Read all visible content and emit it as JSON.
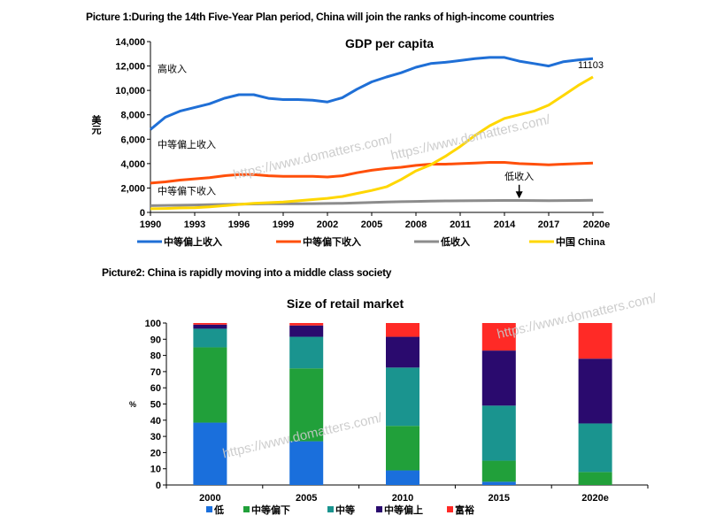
{
  "captions": {
    "picture1": "Picture 1:During the 14th Five-Year Plan period, China will join the ranks of high-income countries",
    "picture2": "Picture2: China is rapidly moving into a middle class society"
  },
  "watermarks": [
    "https://www.domatters.com/",
    "https://www.domatters.com/",
    "https://www.domatters.com/",
    "https://www.domatters.com/"
  ],
  "chart_data": [
    {
      "type": "line",
      "title": "GDP per capita",
      "ylabel": "美元",
      "xlabel": "",
      "ylim": [
        0,
        14000
      ],
      "xlim": [
        1990,
        2020
      ],
      "yticks": [
        "0",
        "2,000",
        "4,000",
        "6,000",
        "8,000",
        "10,000",
        "12,000",
        "14,000"
      ],
      "xticks": [
        "1990",
        "1993",
        "1996",
        "1999",
        "2002",
        "2005",
        "2008",
        "2011",
        "2014",
        "2017",
        "2020e"
      ],
      "grid": false,
      "legend_position": "bottom",
      "x": [
        1990,
        1991,
        1992,
        1993,
        1994,
        1995,
        1996,
        1997,
        1998,
        1999,
        2000,
        2001,
        2002,
        2003,
        2004,
        2005,
        2006,
        2007,
        2008,
        2009,
        2010,
        2011,
        2012,
        2013,
        2014,
        2015,
        2016,
        2017,
        2018,
        2019,
        2020
      ],
      "series": [
        {
          "name": "中等偏上收入",
          "color": "#1f6fd6",
          "values": [
            6800,
            7800,
            8300,
            8600,
            8900,
            9350,
            9650,
            9650,
            9350,
            9250,
            9250,
            9200,
            9050,
            9400,
            10100,
            10700,
            11100,
            11450,
            11900,
            12200,
            12300,
            12450,
            12600,
            12700,
            12700,
            12400,
            12200,
            12000,
            12350,
            12500,
            12600
          ]
        },
        {
          "name": "中等偏下收入",
          "color": "#ff4f0a",
          "values": [
            2400,
            2500,
            2650,
            2750,
            2850,
            3000,
            3100,
            3100,
            3000,
            2950,
            2950,
            2950,
            2900,
            3000,
            3250,
            3450,
            3600,
            3700,
            3850,
            3950,
            3950,
            4000,
            4050,
            4100,
            4100,
            4000,
            3950,
            3900,
            3950,
            4000,
            4050
          ]
        },
        {
          "name": "低收入",
          "color": "#8c8c8c",
          "values": [
            550,
            570,
            590,
            610,
            630,
            650,
            670,
            690,
            700,
            700,
            710,
            720,
            730,
            750,
            780,
            820,
            850,
            880,
            900,
            920,
            940,
            950,
            960,
            970,
            980,
            980,
            970,
            960,
            970,
            980,
            1000
          ]
        },
        {
          "name": "中国 China",
          "color": "#ffd700",
          "values": [
            300,
            320,
            360,
            380,
            450,
            550,
            650,
            750,
            800,
            850,
            950,
            1050,
            1150,
            1300,
            1550,
            1800,
            2100,
            2700,
            3400,
            3900,
            4600,
            5400,
            6300,
            7100,
            7700,
            8000,
            8300,
            8800,
            9600,
            10400,
            11103
          ]
        }
      ],
      "annotations": [
        {
          "text": "高收入",
          "x": 1993,
          "y": 11500
        },
        {
          "text": "中等偏上收入",
          "x": 1993,
          "y": 5300
        },
        {
          "text": "中等偏下收入",
          "x": 1993,
          "y": 1500
        },
        {
          "text": "低收入",
          "x": 2015,
          "y": 2700,
          "arrow": true
        },
        {
          "text": "11103",
          "x": 2020,
          "y": 11103
        }
      ]
    },
    {
      "type": "bar",
      "stacked": true,
      "title": "Size of retail market",
      "ylabel": "%",
      "xlabel": "",
      "ylim": [
        0,
        100
      ],
      "yticks": [
        "0",
        "10",
        "20",
        "30",
        "40",
        "50",
        "60",
        "70",
        "80",
        "90",
        "100"
      ],
      "categories": [
        "2000",
        "2005",
        "2010",
        "2015",
        "2020e"
      ],
      "grid": false,
      "legend_position": "bottom",
      "series": [
        {
          "name": "低",
          "color": "#1a6fdc",
          "values": [
            38.5,
            27,
            9,
            2,
            0
          ]
        },
        {
          "name": "中等偏下",
          "color": "#21a03a",
          "values": [
            46.5,
            45,
            27.5,
            13,
            8
          ]
        },
        {
          "name": "中等",
          "color": "#1a948f",
          "values": [
            11.5,
            19.5,
            36,
            34,
            30
          ]
        },
        {
          "name": "中等偏上",
          "color": "#2a0a6e",
          "values": [
            2.5,
            7,
            19,
            34,
            40
          ]
        },
        {
          "name": "富裕",
          "color": "#ff2a26",
          "values": [
            1,
            1.5,
            8.5,
            17,
            22
          ]
        }
      ]
    }
  ]
}
